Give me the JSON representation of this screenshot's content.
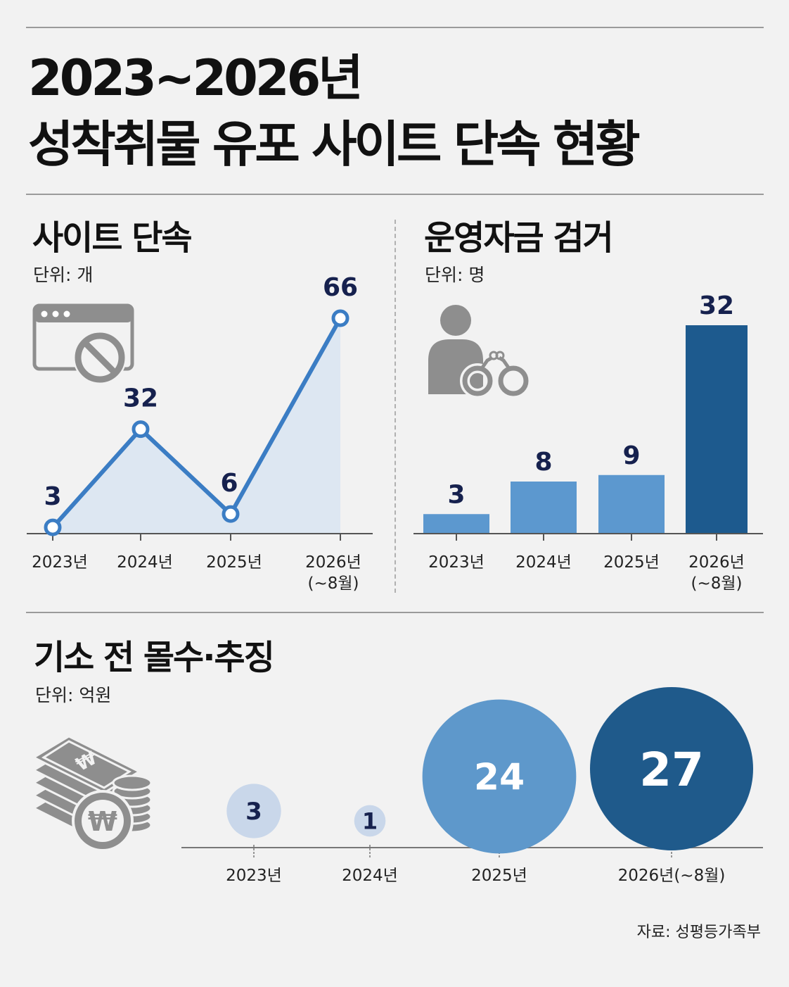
{
  "title": {
    "line1": "2023~2026년",
    "line2": "성착취물 유포 사이트 단속 현황"
  },
  "source": "자료: 성평등가족부",
  "colors": {
    "line": "#3b7dc4",
    "area": "#dde7f2",
    "bar_light": "#5c98cf",
    "bar_dark": "#1d5a8e",
    "bubble_pale": "#c9d7ea",
    "bubble_mid": "#5e98cb",
    "bubble_dark": "#1f5a8b",
    "value_text": "#16214e",
    "icon_gray": "#8e8e8e"
  },
  "panels": {
    "sites": {
      "title": "사이트 단속",
      "unit": "단위: 개",
      "icon": "browser-blocked-icon"
    },
    "arrests": {
      "title": "운영자금 검거",
      "unit": "단위: 명",
      "icon": "person-handcuffs-icon"
    },
    "seizure": {
      "title": "기소 전 몰수·추징",
      "unit": "단위: 억원",
      "icon": "money-stack-coins-icon"
    }
  },
  "chart_data": [
    {
      "type": "line",
      "title": "사이트 단속",
      "unit": "단위: 개",
      "categories": [
        "2023년",
        "2024년",
        "2025년",
        "2026년\n(~8월)"
      ],
      "values": [
        3,
        32,
        6,
        66
      ],
      "area_fill": true
    },
    {
      "type": "bar",
      "title": "운영자금 검거",
      "unit": "단위: 명",
      "categories": [
        "2023년",
        "2024년",
        "2025년",
        "2026년\n(~8월)"
      ],
      "values": [
        3,
        8,
        9,
        32
      ],
      "highlight_last": true
    },
    {
      "type": "bubble",
      "title": "기소 전 몰수·추징",
      "unit": "단위: 억원",
      "categories": [
        "2023년",
        "2024년",
        "2025년",
        "2026년(~8월)"
      ],
      "values": [
        3,
        1,
        24,
        27
      ]
    }
  ]
}
